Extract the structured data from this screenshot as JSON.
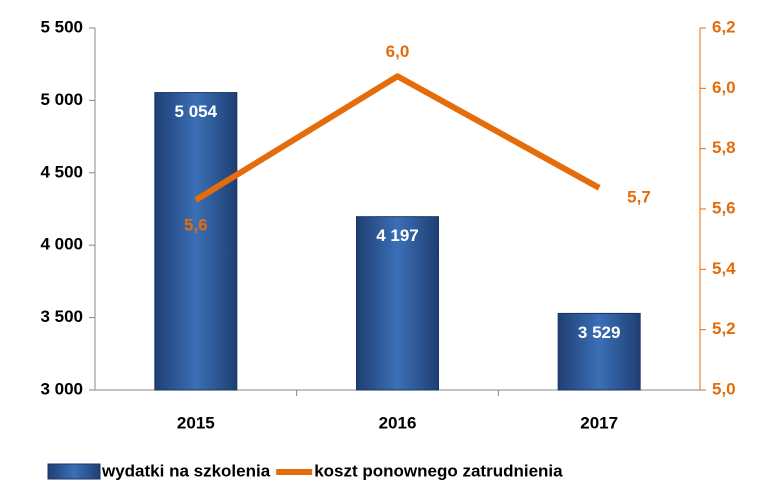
{
  "chart_data": {
    "type": "bar",
    "categories": [
      "2015",
      "2016",
      "2017"
    ],
    "series": [
      {
        "name": "wydatki na szkolenia",
        "type": "bar",
        "color": "#2f5d9e",
        "values": [
          5054,
          4197,
          3529
        ],
        "value_labels": [
          "5 054",
          "4 197",
          "3 529"
        ]
      },
      {
        "name": "koszt ponownego zatrudnienia",
        "type": "line",
        "axis": "y2",
        "color": "#e46c0a",
        "values": [
          5.63,
          6.04,
          5.67
        ],
        "value_labels": [
          "5,6",
          "6,0",
          "5,7"
        ]
      }
    ],
    "ylim": [
      3000,
      5500
    ],
    "yticks": [
      {
        "value": 3000,
        "label": "3 000"
      },
      {
        "value": 3500,
        "label": "3 500"
      },
      {
        "value": 4000,
        "label": "4 000"
      },
      {
        "value": 4500,
        "label": "4 500"
      },
      {
        "value": 5000,
        "label": "5 000"
      },
      {
        "value": 5500,
        "label": "5 500"
      }
    ],
    "y2lim": [
      5.0,
      6.2
    ],
    "y2ticks": [
      {
        "value": 5.0,
        "label": "5,0"
      },
      {
        "value": 5.2,
        "label": "5,2"
      },
      {
        "value": 5.4,
        "label": "5,4"
      },
      {
        "value": 5.6,
        "label": "5,6"
      },
      {
        "value": 5.8,
        "label": "5,8"
      },
      {
        "value": 6.0,
        "label": "6,0"
      },
      {
        "value": 6.2,
        "label": "6,2"
      }
    ],
    "grid": false,
    "legend": "bottom"
  }
}
